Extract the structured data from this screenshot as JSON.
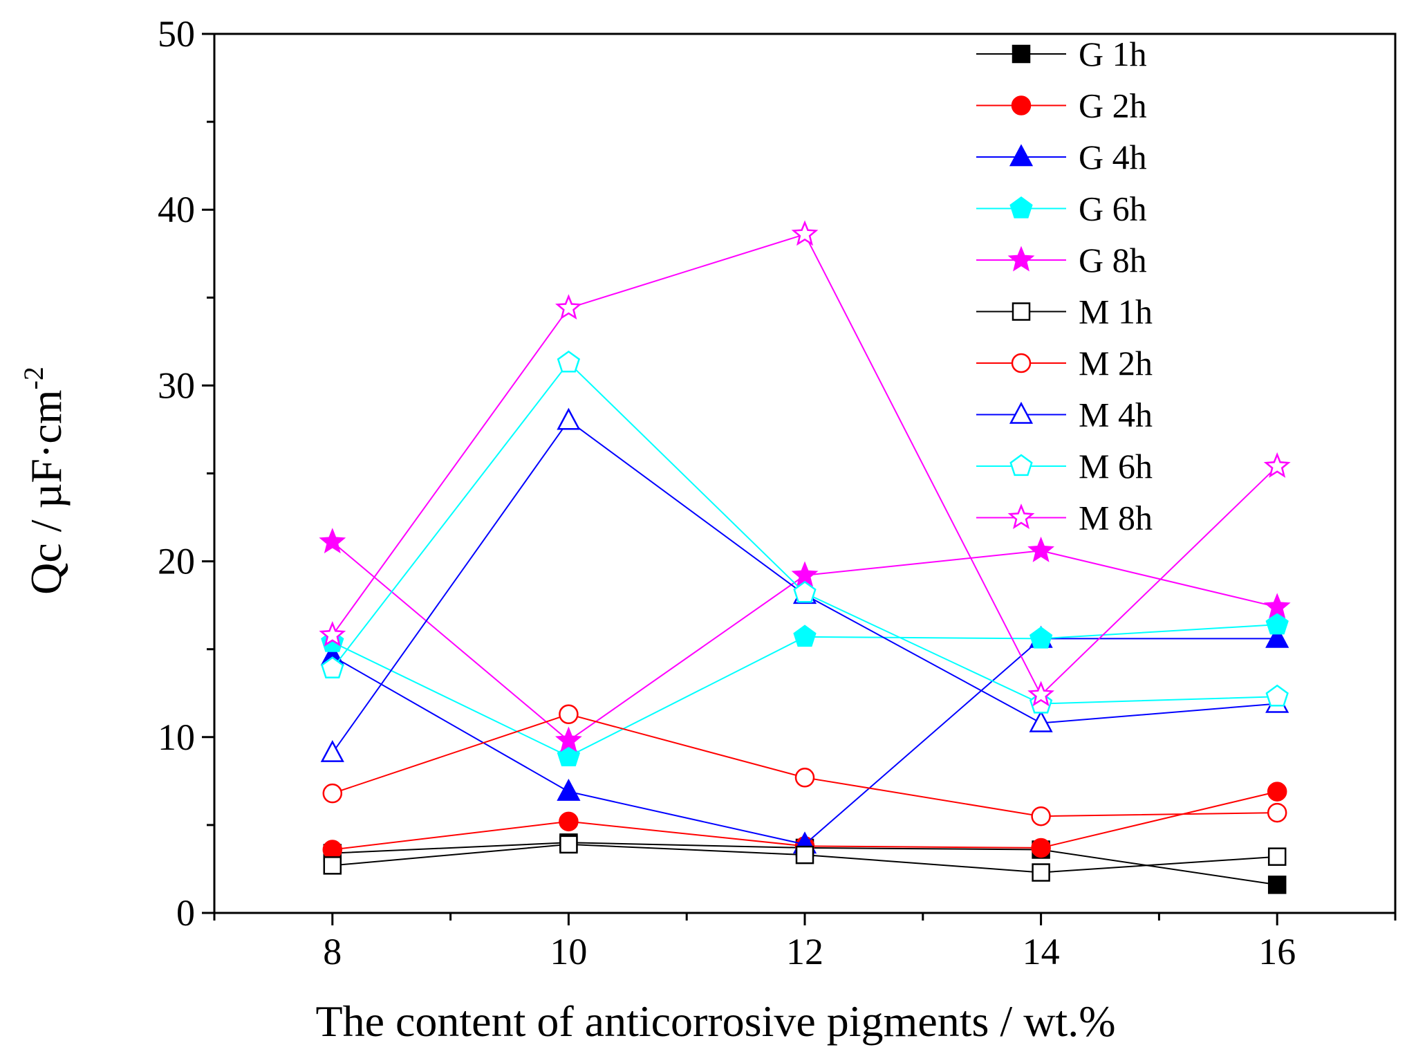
{
  "chart_data": {
    "type": "line",
    "title": "",
    "xlabel": "The content of anticorrosive pigments / wt.%",
    "ylabel": "Qc / µF·cm",
    "ylabel_superscript": "-2",
    "xlim": [
      7,
      17
    ],
    "ylim": [
      0,
      50
    ],
    "x_ticks": [
      8,
      10,
      12,
      14,
      16
    ],
    "y_ticks": [
      0,
      10,
      20,
      30,
      40,
      50
    ],
    "x": [
      8,
      10,
      12,
      14,
      16
    ],
    "legend_position": "top-right",
    "series": [
      {
        "name": "G  1h",
        "color": "#000000",
        "marker": "square",
        "filled": true,
        "values": [
          3.4,
          4.0,
          3.7,
          3.6,
          1.6
        ]
      },
      {
        "name": "G  2h",
        "color": "#ff0000",
        "marker": "circle",
        "filled": true,
        "values": [
          3.6,
          5.2,
          3.8,
          3.7,
          6.9
        ]
      },
      {
        "name": "G  4h",
        "color": "#0000ff",
        "marker": "triangle",
        "filled": true,
        "values": [
          14.6,
          6.9,
          3.9,
          15.6,
          15.6
        ]
      },
      {
        "name": "G  6h",
        "color": "#00ffff",
        "marker": "pentagon",
        "filled": true,
        "values": [
          15.4,
          8.9,
          15.7,
          15.6,
          16.4
        ]
      },
      {
        "name": "G  8h",
        "color": "#ff00ff",
        "marker": "star",
        "filled": true,
        "values": [
          21.1,
          9.8,
          19.2,
          20.6,
          17.4
        ]
      },
      {
        "name": "M 1h",
        "color": "#000000",
        "marker": "square",
        "filled": false,
        "values": [
          2.7,
          3.9,
          3.3,
          2.3,
          3.2
        ]
      },
      {
        "name": "M 2h",
        "color": "#ff0000",
        "marker": "circle",
        "filled": false,
        "values": [
          6.8,
          11.3,
          7.7,
          5.5,
          5.7
        ]
      },
      {
        "name": "M 4h",
        "color": "#0000ff",
        "marker": "triangle",
        "filled": false,
        "values": [
          9.1,
          28.0,
          18.1,
          10.8,
          11.9
        ]
      },
      {
        "name": "M 6h",
        "color": "#00ffff",
        "marker": "pentagon",
        "filled": false,
        "values": [
          13.9,
          31.3,
          18.2,
          11.9,
          12.3
        ]
      },
      {
        "name": "M 8h",
        "color": "#ff00ff",
        "marker": "star",
        "filled": false,
        "values": [
          15.8,
          34.4,
          38.6,
          12.4,
          25.4
        ]
      }
    ]
  }
}
